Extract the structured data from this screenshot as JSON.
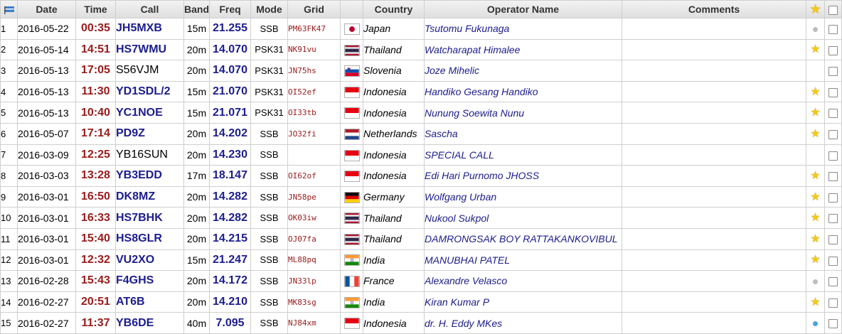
{
  "headers": {
    "date": "Date",
    "time": "Time",
    "call": "Call",
    "band": "Band",
    "freq": "Freq",
    "mode": "Mode",
    "grid": "Grid",
    "country": "Country",
    "operator": "Operator Name",
    "comments": "Comments"
  },
  "icons": {
    "header_flag": "flag-icon",
    "header_star": "star-icon",
    "header_checkbox": "checkbox-icon"
  },
  "rows": [
    {
      "num": "1",
      "date": "2016-05-22",
      "time": "00:35",
      "call": "JH5MXB",
      "call_bold": true,
      "band": "15m",
      "freq": "21.255",
      "mode": "SSB",
      "grid": "PM63FK47",
      "flag": "jp",
      "country": "Japan",
      "operator": "Tsutomu Fukunaga",
      "comments": "",
      "marker": "dot-gray"
    },
    {
      "num": "2",
      "date": "2016-05-14",
      "time": "14:51",
      "call": "HS7WMU",
      "call_bold": true,
      "band": "20m",
      "freq": "14.070",
      "mode": "PSK31",
      "grid": "NK91vu",
      "flag": "th",
      "country": "Thailand",
      "operator": "Watcharapat Himalee",
      "comments": "",
      "marker": "star"
    },
    {
      "num": "3",
      "date": "2016-05-13",
      "time": "17:05",
      "call": "S56VJM",
      "call_bold": false,
      "band": "20m",
      "freq": "14.070",
      "mode": "PSK31",
      "grid": "JN75hs",
      "flag": "si",
      "country": "Slovenia",
      "operator": "Joze Mihelic",
      "comments": "",
      "marker": ""
    },
    {
      "num": "4",
      "date": "2016-05-13",
      "time": "11:30",
      "call": "YD1SDL/2",
      "call_bold": true,
      "band": "15m",
      "freq": "21.070",
      "mode": "PSK31",
      "grid": "OI52ef",
      "flag": "id",
      "country": "Indonesia",
      "operator": "Handiko Gesang Handiko",
      "comments": "",
      "marker": "star"
    },
    {
      "num": "5",
      "date": "2016-05-13",
      "time": "10:40",
      "call": "YC1NOE",
      "call_bold": true,
      "band": "15m",
      "freq": "21.071",
      "mode": "PSK31",
      "grid": "OI33tb",
      "flag": "id",
      "country": "Indonesia",
      "operator": "Nunung Soewita Nunu",
      "comments": "",
      "marker": "star"
    },
    {
      "num": "6",
      "date": "2016-05-07",
      "time": "17:14",
      "call": "PD9Z",
      "call_bold": true,
      "band": "20m",
      "freq": "14.202",
      "mode": "SSB",
      "grid": "JO32fi",
      "flag": "nl",
      "country": "Netherlands",
      "operator": "Sascha",
      "comments": "",
      "marker": "star"
    },
    {
      "num": "7",
      "date": "2016-03-09",
      "time": "12:25",
      "call": "YB16SUN",
      "call_bold": false,
      "band": "20m",
      "freq": "14.230",
      "mode": "SSB",
      "grid": "",
      "flag": "id",
      "country": "Indonesia",
      "operator": "SPECIAL CALL",
      "comments": "",
      "marker": ""
    },
    {
      "num": "8",
      "date": "2016-03-03",
      "time": "13:28",
      "call": "YB3EDD",
      "call_bold": true,
      "band": "17m",
      "freq": "18.147",
      "mode": "SSB",
      "grid": "OI62of",
      "flag": "id",
      "country": "Indonesia",
      "operator": "Edi Hari Purnomo JHOSS",
      "comments": "",
      "marker": "star"
    },
    {
      "num": "9",
      "date": "2016-03-01",
      "time": "16:50",
      "call": "DK8MZ",
      "call_bold": true,
      "band": "20m",
      "freq": "14.282",
      "mode": "SSB",
      "grid": "JN58pe",
      "flag": "de",
      "country": "Germany",
      "operator": "Wolfgang Urban",
      "comments": "",
      "marker": "star"
    },
    {
      "num": "10",
      "date": "2016-03-01",
      "time": "16:33",
      "call": "HS7BHK",
      "call_bold": true,
      "band": "20m",
      "freq": "14.282",
      "mode": "SSB",
      "grid": "OK03iw",
      "flag": "th",
      "country": "Thailand",
      "operator": "Nukool Sukpol",
      "comments": "",
      "marker": "star"
    },
    {
      "num": "11",
      "date": "2016-03-01",
      "time": "15:40",
      "call": "HS8GLR",
      "call_bold": true,
      "band": "20m",
      "freq": "14.215",
      "mode": "SSB",
      "grid": "OJ07fa",
      "flag": "th",
      "country": "Thailand",
      "operator": "DAMRONGSAK BOY RATTAKANKOVIBUL",
      "comments": "",
      "marker": "star"
    },
    {
      "num": "12",
      "date": "2016-03-01",
      "time": "12:32",
      "call": "VU2XO",
      "call_bold": true,
      "band": "15m",
      "freq": "21.247",
      "mode": "SSB",
      "grid": "ML88pq",
      "flag": "in",
      "country": "India",
      "operator": "MANUBHAI PATEL",
      "comments": "",
      "marker": "star"
    },
    {
      "num": "13",
      "date": "2016-02-28",
      "time": "15:43",
      "call": "F4GHS",
      "call_bold": true,
      "band": "20m",
      "freq": "14.172",
      "mode": "SSB",
      "grid": "JN33lp",
      "flag": "fr",
      "country": "France",
      "operator": "Alexandre Velasco",
      "comments": "",
      "marker": "dot-gray"
    },
    {
      "num": "14",
      "date": "2016-02-27",
      "time": "20:51",
      "call": "AT6B",
      "call_bold": true,
      "band": "20m",
      "freq": "14.210",
      "mode": "SSB",
      "grid": "MK83sg",
      "flag": "in",
      "country": "India",
      "operator": "Kiran Kumar P",
      "comments": "",
      "marker": "star"
    },
    {
      "num": "15",
      "date": "2016-02-27",
      "time": "11:37",
      "call": "YB6DE",
      "call_bold": true,
      "band": "40m",
      "freq": "7.095",
      "mode": "SSB",
      "grid": "NJ84xm",
      "flag": "id",
      "country": "Indonesia",
      "operator": "dr. H. Eddy MKes",
      "comments": "",
      "marker": "dot-blue"
    }
  ]
}
